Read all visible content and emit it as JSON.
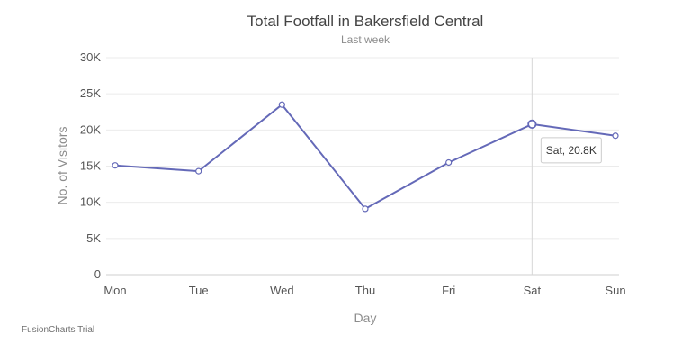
{
  "chart_data": {
    "type": "line",
    "title": "Total Footfall in Bakersfield Central",
    "subtitle": "Last week",
    "xlabel": "Day",
    "ylabel": "No. of Visitors",
    "categories": [
      "Mon",
      "Tue",
      "Wed",
      "Thu",
      "Fri",
      "Sat",
      "Sun"
    ],
    "series": [
      {
        "values": [
          15100,
          14300,
          23500,
          9100,
          15500,
          20800,
          19200
        ]
      }
    ],
    "ylim": [
      0,
      30000
    ],
    "yticks": [
      0,
      5000,
      10000,
      15000,
      20000,
      25000,
      30000
    ],
    "ytick_labels": [
      "0",
      "5K",
      "10K",
      "15K",
      "20K",
      "25K",
      "30K"
    ],
    "grid": true,
    "colors": {
      "line": "#6469b8",
      "grid": "#ebebeb"
    },
    "tooltip": {
      "category": "Sat",
      "text": "Sat, 20.8K"
    }
  },
  "watermark": "FusionCharts Trial"
}
